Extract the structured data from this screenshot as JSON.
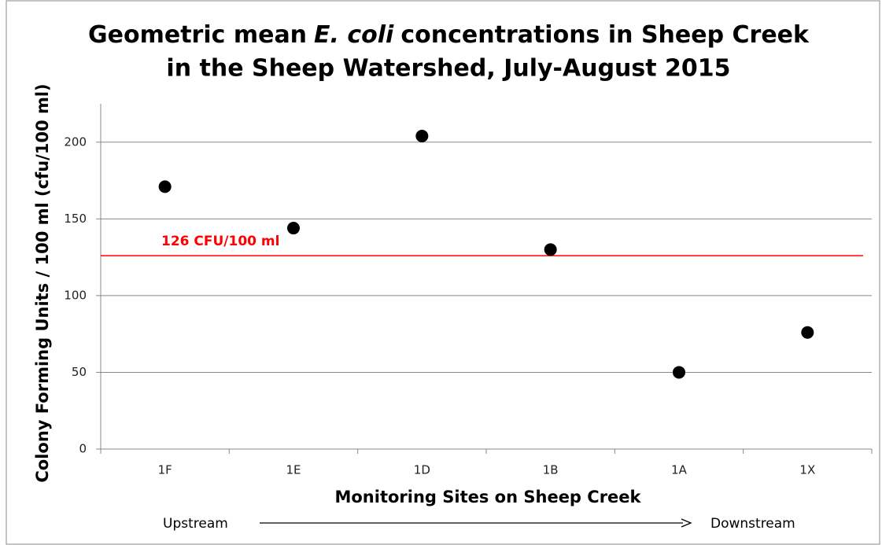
{
  "chart_data": {
    "type": "scatter",
    "title": [
      "Geometric mean",
      "E. coli",
      "concentrations in Sheep Creek",
      "in the Sheep Watershed, July-August 2015"
    ],
    "xlabel": "Monitoring Sites on Sheep Creek",
    "ylabel": "Colony Forming Units / 100 ml (cfu/100 ml)",
    "categories": [
      "1F",
      "1E",
      "1D",
      "1B",
      "1A",
      "1X"
    ],
    "values": [
      171,
      144,
      204,
      130,
      50,
      76
    ],
    "color": "#000000",
    "ylim": [
      0,
      225
    ],
    "yticks": [
      0,
      50,
      100,
      150,
      200
    ],
    "grid": true,
    "reference_line": {
      "value": 126,
      "label": "126 CFU/100 ml",
      "color": "#ff0000"
    },
    "annotations": [
      "Upstream",
      "Downstream"
    ]
  }
}
